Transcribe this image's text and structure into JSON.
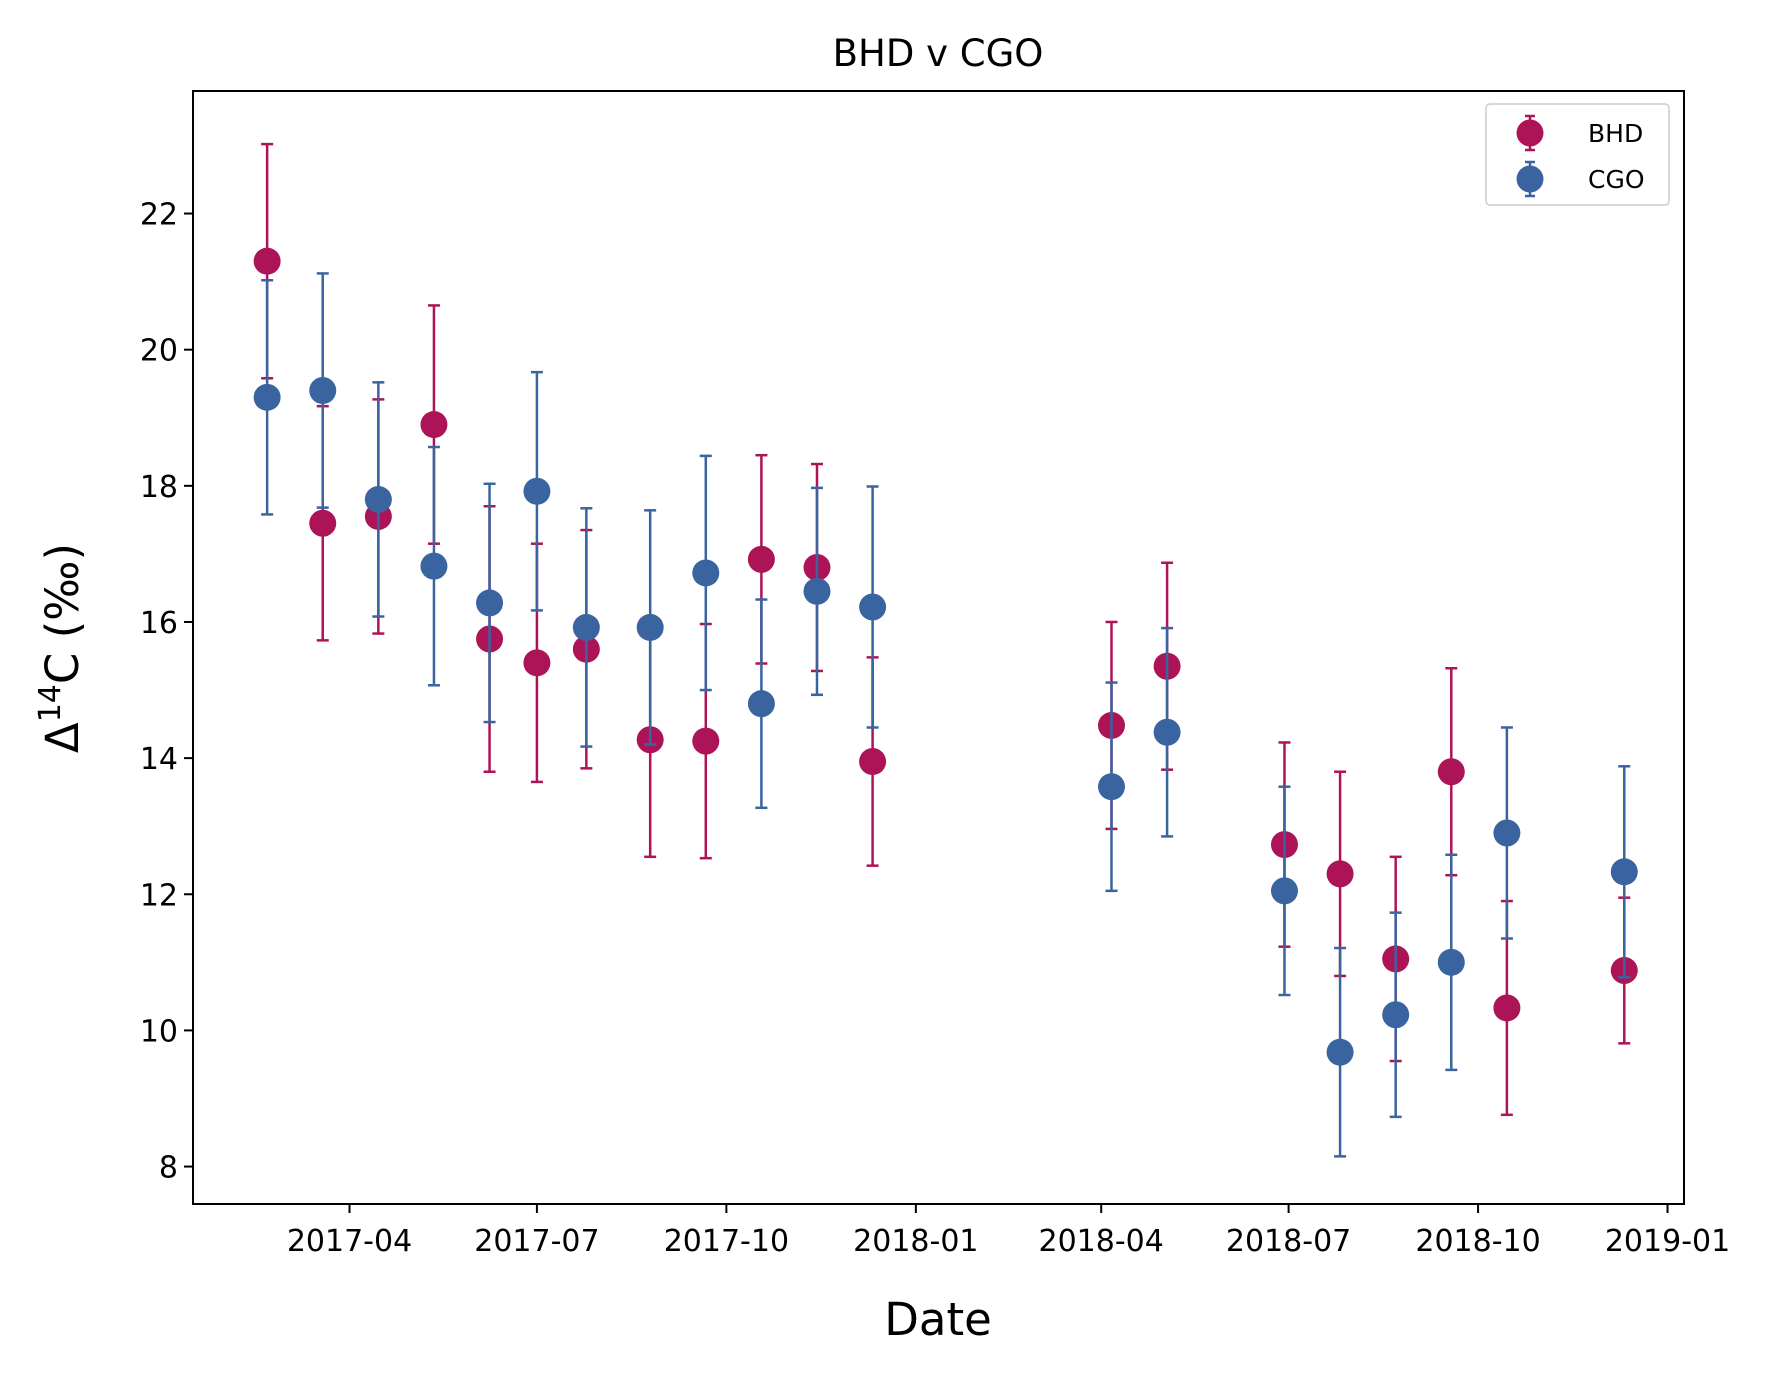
{
  "chart_data": {
    "type": "scatter",
    "title": "BHD v CGO",
    "xlabel": "Date",
    "ylabel": "Δ14C (‰)",
    "ylabel_parts": {
      "delta": "Δ",
      "sup": "14",
      "rest": "C (‰)"
    },
    "xlim": [
      "2017-01-15",
      "2019-01-09"
    ],
    "ylim": [
      7.45,
      23.8
    ],
    "x_ticks": [
      "2017-04-01",
      "2017-07-01",
      "2017-10-01",
      "2018-01-01",
      "2018-04-01",
      "2018-07-01",
      "2018-10-01",
      "2019-01-01"
    ],
    "x_tick_labels": [
      "2017-04",
      "2017-07",
      "2017-10",
      "2018-01",
      "2018-04",
      "2018-07",
      "2018-10",
      "2019-01"
    ],
    "y_ticks": [
      8,
      10,
      12,
      14,
      16,
      18,
      20,
      22
    ],
    "y_tick_labels": [
      "8",
      "10",
      "12",
      "14",
      "16",
      "18",
      "20",
      "22"
    ],
    "grid": false,
    "legend_position": "top-right",
    "series": [
      {
        "name": "BHD",
        "color": "#ad1457",
        "x": [
          "2017-02-20",
          "2017-03-19",
          "2017-04-15",
          "2017-05-12",
          "2017-06-08",
          "2017-07-01",
          "2017-07-25",
          "2017-08-25",
          "2017-09-21",
          "2017-10-18",
          "2017-11-14",
          "2017-12-11",
          "2018-04-06",
          "2018-05-03",
          "2018-06-29",
          "2018-07-26",
          "2018-08-22",
          "2018-09-18",
          "2018-10-15",
          "2018-12-11"
        ],
        "y": [
          21.3,
          17.45,
          17.55,
          18.9,
          15.75,
          15.4,
          15.6,
          14.27,
          14.25,
          16.92,
          16.8,
          13.95,
          14.48,
          15.35,
          12.73,
          12.3,
          11.05,
          13.8,
          10.33,
          10.88
        ],
        "err": [
          1.72,
          1.72,
          1.72,
          1.75,
          1.95,
          1.75,
          1.75,
          1.72,
          1.72,
          1.53,
          1.52,
          1.53,
          1.52,
          1.52,
          1.5,
          1.5,
          1.5,
          1.52,
          1.57,
          1.07
        ]
      },
      {
        "name": "CGO",
        "color": "#3a64a0",
        "x": [
          "2017-02-20",
          "2017-03-19",
          "2017-04-15",
          "2017-05-12",
          "2017-06-08",
          "2017-07-01",
          "2017-07-25",
          "2017-08-25",
          "2017-09-21",
          "2017-10-18",
          "2017-11-14",
          "2017-12-11",
          "2018-04-06",
          "2018-05-03",
          "2018-06-29",
          "2018-07-26",
          "2018-08-22",
          "2018-09-18",
          "2018-10-15",
          "2018-12-11"
        ],
        "y": [
          19.3,
          19.4,
          17.8,
          16.82,
          16.28,
          17.92,
          15.92,
          15.92,
          16.72,
          14.8,
          16.45,
          16.22,
          13.58,
          14.38,
          12.05,
          9.68,
          10.23,
          11.0,
          12.9,
          12.33
        ],
        "err": [
          1.72,
          1.72,
          1.72,
          1.75,
          1.75,
          1.75,
          1.75,
          1.72,
          1.72,
          1.53,
          1.52,
          1.77,
          1.53,
          1.53,
          1.53,
          1.53,
          1.5,
          1.58,
          1.55,
          1.55
        ]
      }
    ]
  }
}
